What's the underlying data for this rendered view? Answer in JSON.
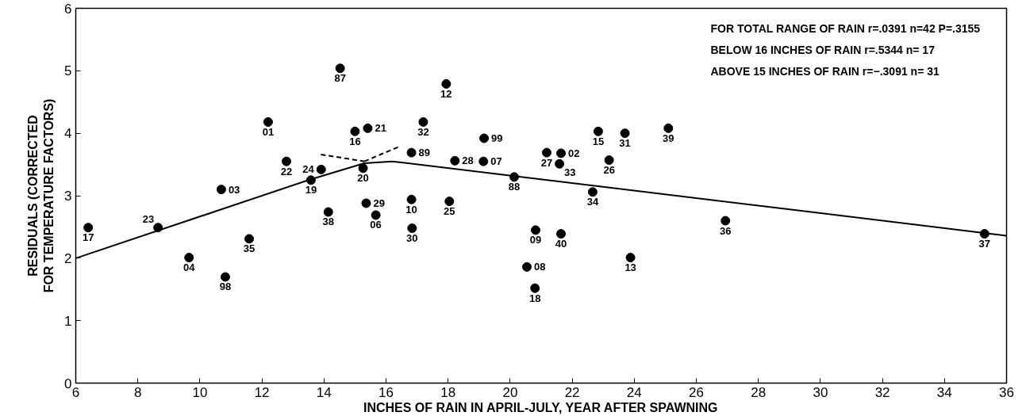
{
  "chart_data": {
    "type": "scatter",
    "xlabel": "INCHES OF RAIN IN APRIL-JULY, YEAR AFTER SPAWNING",
    "ylabel": "RESIDUALS (CORRECTED\nFOR TEMPERATURE FACTORS)",
    "xlim": [
      6,
      36
    ],
    "ylim": [
      0,
      6
    ],
    "xticks": [
      6,
      8,
      10,
      12,
      14,
      16,
      18,
      20,
      22,
      24,
      26,
      28,
      30,
      32,
      34,
      36
    ],
    "yticks": [
      0,
      1,
      2,
      3,
      4,
      5,
      6
    ],
    "grid": false,
    "marker": "circle",
    "series": [
      {
        "color": "#000000",
        "x": [
          6.4,
          8.65,
          9.65,
          10.82,
          10.69,
          11.59,
          12.2,
          12.79,
          13.58,
          13.91,
          14.14,
          14.52,
          15.0,
          15.41,
          15.26,
          15.36,
          15.67,
          16.82,
          16.82,
          16.84,
          17.2,
          17.94,
          18.22,
          18.04,
          19.16,
          19.14,
          20.13,
          20.54,
          20.82,
          20.8,
          21.18,
          21.64,
          21.59,
          21.64,
          22.66,
          22.84,
          23.19,
          23.7,
          23.88,
          25.1,
          26.94,
          35.29
        ],
        "values": [
          2.49,
          2.49,
          2.01,
          1.7,
          3.1,
          2.31,
          4.18,
          3.55,
          3.25,
          3.42,
          2.74,
          5.04,
          4.03,
          4.08,
          3.44,
          2.88,
          2.69,
          3.69,
          2.94,
          2.48,
          4.18,
          4.79,
          3.56,
          2.91,
          3.92,
          3.55,
          3.3,
          1.86,
          2.45,
          1.52,
          3.69,
          3.68,
          3.51,
          2.39,
          3.06,
          4.03,
          3.57,
          4.0,
          2.01,
          4.08,
          2.6,
          2.39
        ]
      },
      {
        "type": "line",
        "color": "#000000",
        "line_style": "solid",
        "marker": "none",
        "x": [
          6,
          13.5,
          15.3,
          16.2,
          36
        ],
        "values": [
          2.0,
          3.25,
          3.52,
          3.55,
          2.36
        ]
      },
      {
        "type": "line",
        "color": "#000000",
        "line_style": "dashed",
        "marker": "none",
        "x": [
          13.9,
          15.3
        ],
        "values": [
          3.66,
          3.55
        ]
      },
      {
        "type": "line",
        "color": "#000000",
        "line_style": "dashed",
        "marker": "none",
        "x": [
          15.3,
          16.4
        ],
        "values": [
          3.55,
          3.78
        ]
      }
    ],
    "annotations": [
      "FOR TOTAL RANGE OF RAIN    r=.0391  n=42  P=.3155",
      "BELOW 16 INCHES OF RAIN    r=.5344  n= 17",
      "ABOVE 15 INCHES OF RAIN    r=−.3091 n= 31",
      {
        "text": "17",
        "x": 6.4,
        "y": 2.49
      },
      {
        "text": "23",
        "x": 8.65,
        "y": 2.49
      },
      {
        "text": "04",
        "x": 9.65,
        "y": 2.01
      },
      {
        "text": "98",
        "x": 10.82,
        "y": 1.7
      },
      {
        "text": "03",
        "x": 10.69,
        "y": 3.1
      },
      {
        "text": "35",
        "x": 11.59,
        "y": 2.31
      },
      {
        "text": "01",
        "x": 12.2,
        "y": 4.18
      },
      {
        "text": "22",
        "x": 12.79,
        "y": 3.55
      },
      {
        "text": "19",
        "x": 13.58,
        "y": 3.25
      },
      {
        "text": "24",
        "x": 13.91,
        "y": 3.42
      },
      {
        "text": "38",
        "x": 14.14,
        "y": 2.74
      },
      {
        "text": "87",
        "x": 14.52,
        "y": 5.04
      },
      {
        "text": "16",
        "x": 15.0,
        "y": 4.03
      },
      {
        "text": "21",
        "x": 15.41,
        "y": 4.08
      },
      {
        "text": "20",
        "x": 15.26,
        "y": 3.44
      },
      {
        "text": "29",
        "x": 15.36,
        "y": 2.88
      },
      {
        "text": "06",
        "x": 15.67,
        "y": 2.69
      },
      {
        "text": "89",
        "x": 16.82,
        "y": 3.69
      },
      {
        "text": "10",
        "x": 16.82,
        "y": 2.94
      },
      {
        "text": "30",
        "x": 16.84,
        "y": 2.48
      },
      {
        "text": "32",
        "x": 17.2,
        "y": 4.18
      },
      {
        "text": "12",
        "x": 17.94,
        "y": 4.79
      },
      {
        "text": "28",
        "x": 18.22,
        "y": 3.56
      },
      {
        "text": "25",
        "x": 18.04,
        "y": 2.91
      },
      {
        "text": "99",
        "x": 19.16,
        "y": 3.92
      },
      {
        "text": "07",
        "x": 19.14,
        "y": 3.55
      },
      {
        "text": "88",
        "x": 20.13,
        "y": 3.3
      },
      {
        "text": "08",
        "x": 20.54,
        "y": 1.86
      },
      {
        "text": "09",
        "x": 20.82,
        "y": 2.45
      },
      {
        "text": "18",
        "x": 20.8,
        "y": 1.52
      },
      {
        "text": "27",
        "x": 21.18,
        "y": 3.69
      },
      {
        "text": "02",
        "x": 21.64,
        "y": 3.68
      },
      {
        "text": "33",
        "x": 21.59,
        "y": 3.51
      },
      {
        "text": "40",
        "x": 21.64,
        "y": 2.39
      },
      {
        "text": "34",
        "x": 22.66,
        "y": 3.06
      },
      {
        "text": "15",
        "x": 22.84,
        "y": 4.03
      },
      {
        "text": "26",
        "x": 23.19,
        "y": 3.57
      },
      {
        "text": "31",
        "x": 23.7,
        "y": 4.0
      },
      {
        "text": "13",
        "x": 23.88,
        "y": 2.01
      },
      {
        "text": "39",
        "x": 25.1,
        "y": 4.08
      },
      {
        "text": "36",
        "x": 26.94,
        "y": 2.6
      },
      {
        "text": "37",
        "x": 35.29,
        "y": 2.39
      }
    ]
  }
}
